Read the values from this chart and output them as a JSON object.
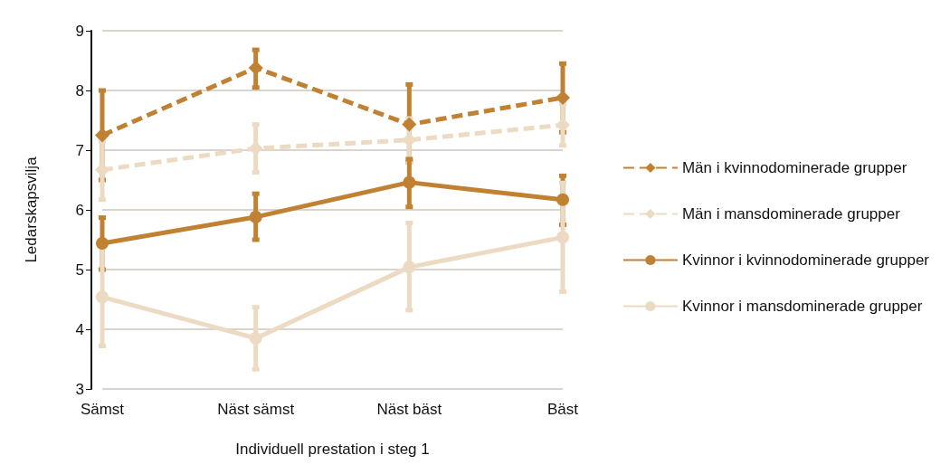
{
  "chart_data": {
    "type": "line",
    "xlabel": "Individuell prestation i steg 1",
    "ylabel": "Ledarskapsvilja",
    "categories": [
      "Sämst",
      "Näst sämst",
      "Näst bäst",
      "Bäst"
    ],
    "series": [
      {
        "name": "Män i kvinnodominerade grupper",
        "color": "#c08232",
        "line_style": "dashed",
        "marker": "diamond",
        "values": [
          7.25,
          8.38,
          7.43,
          7.88
        ],
        "errors": [
          [
            6.5,
            8.0
          ],
          [
            8.05,
            8.68
          ],
          [
            6.8,
            8.1
          ],
          [
            7.3,
            8.45
          ]
        ]
      },
      {
        "name": "Män i mansdominerade grupper",
        "color": "#ecdbc2",
        "line_style": "dashed",
        "marker": "diamond",
        "values": [
          6.67,
          7.03,
          7.17,
          7.42
        ],
        "errors": [
          [
            6.17,
            7.15
          ],
          [
            6.63,
            7.43
          ],
          [
            6.8,
            7.53
          ],
          [
            7.08,
            7.78
          ]
        ]
      },
      {
        "name": "Kvinnor i kvinnodominerade grupper",
        "color": "#c08232",
        "line_style": "solid",
        "marker": "circle",
        "values": [
          5.44,
          5.88,
          6.46,
          6.17
        ],
        "errors": [
          [
            5.0,
            5.87
          ],
          [
            5.5,
            6.27
          ],
          [
            6.05,
            6.85
          ],
          [
            5.75,
            6.57
          ]
        ]
      },
      {
        "name": "Kvinnor i mansdominerade grupper",
        "color": "#ecdbc2",
        "line_style": "solid",
        "marker": "circle",
        "values": [
          4.54,
          3.85,
          5.04,
          5.54
        ],
        "errors": [
          [
            3.72,
            5.38
          ],
          [
            3.33,
            4.37
          ],
          [
            4.32,
            5.78
          ],
          [
            4.63,
            6.45
          ]
        ]
      }
    ],
    "ylim": [
      3,
      9
    ],
    "yticks": [
      3,
      4,
      5,
      6,
      7,
      8,
      9
    ],
    "grid": "y",
    "legend": "right"
  }
}
